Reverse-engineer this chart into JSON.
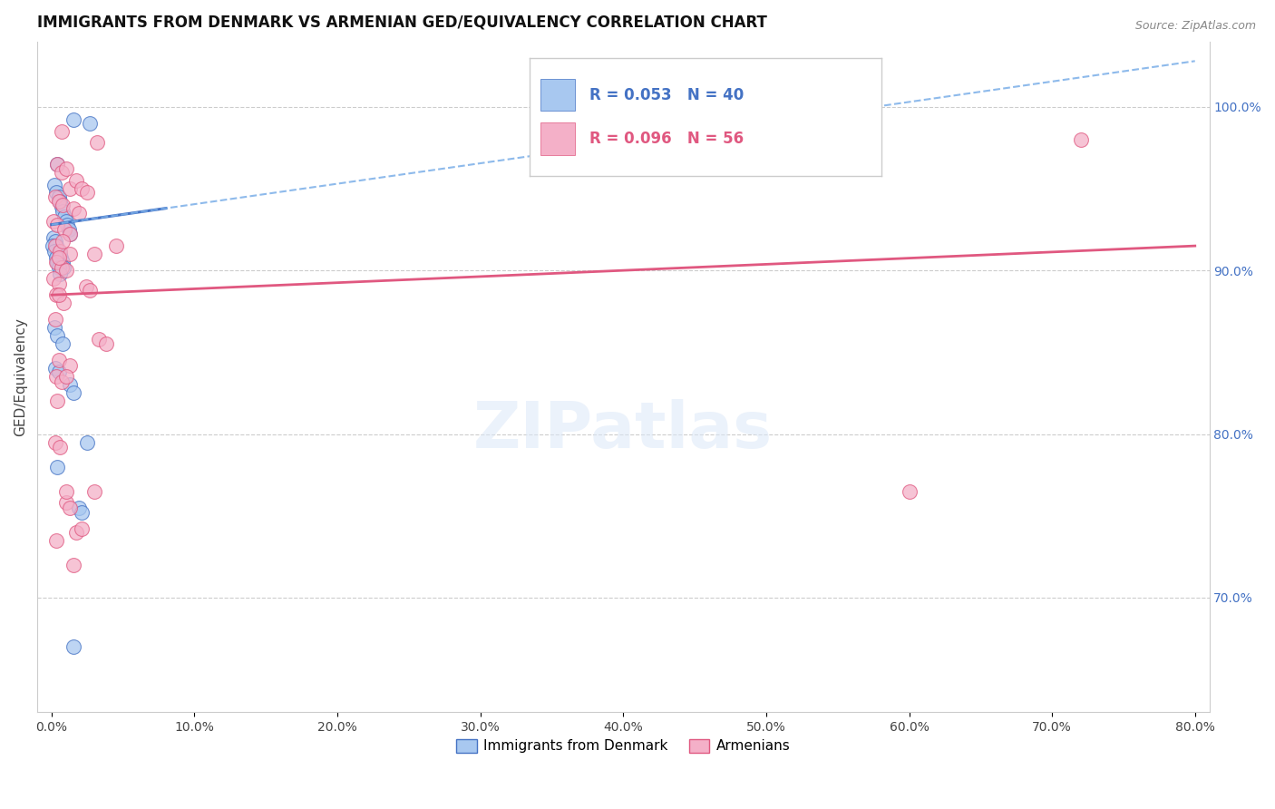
{
  "title": "IMMIGRANTS FROM DENMARK VS ARMENIAN GED/EQUIVALENCY CORRELATION CHART",
  "source": "Source: ZipAtlas.com",
  "ylabel": "GED/Equivalency",
  "right_yticks": [
    70,
    80,
    90,
    100
  ],
  "legend_label1": "Immigrants from Denmark",
  "legend_label2": "Armenians",
  "blue_scatter_x": [
    0.4,
    1.5,
    2.7,
    0.2,
    0.3,
    0.5,
    0.6,
    0.7,
    0.8,
    0.9,
    1.0,
    1.1,
    1.2,
    1.3,
    0.15,
    0.25,
    0.35,
    0.45,
    0.55,
    0.65,
    0.75,
    0.85,
    0.1,
    0.2,
    0.3,
    0.4,
    0.5,
    0.6,
    1.3,
    1.5,
    1.9,
    2.1,
    1.5,
    0.2,
    0.4,
    0.8,
    0.25,
    0.5,
    2.5,
    0.4
  ],
  "blue_scatter_y": [
    96.5,
    99.2,
    99.0,
    95.2,
    94.8,
    94.5,
    94.2,
    93.9,
    93.6,
    93.3,
    93.0,
    92.8,
    92.5,
    92.2,
    92.0,
    91.8,
    91.5,
    91.2,
    91.0,
    90.8,
    90.5,
    90.2,
    91.5,
    91.2,
    90.8,
    90.5,
    90.2,
    89.8,
    83.0,
    82.5,
    75.5,
    75.2,
    67.0,
    86.5,
    86.0,
    85.5,
    84.0,
    83.8,
    79.5,
    78.0
  ],
  "pink_scatter_x": [
    0.7,
    3.2,
    0.4,
    0.7,
    1.0,
    1.3,
    1.7,
    2.1,
    2.5,
    0.25,
    0.5,
    0.8,
    1.5,
    1.9,
    0.15,
    0.4,
    0.9,
    1.3,
    0.25,
    0.6,
    3.0,
    0.35,
    0.7,
    1.0,
    0.15,
    0.5,
    2.4,
    2.7,
    0.35,
    0.85,
    3.3,
    3.8,
    0.5,
    1.3,
    0.35,
    0.7,
    0.4,
    0.25,
    0.6,
    3.0,
    1.0,
    1.3,
    1.7,
    2.1,
    0.35,
    1.5,
    0.8,
    4.5,
    1.3,
    0.5,
    0.25,
    1.0,
    0.5,
    1.0,
    60.0,
    72.0
  ],
  "pink_scatter_y": [
    98.5,
    97.8,
    96.5,
    96.0,
    96.2,
    95.0,
    95.5,
    95.0,
    94.8,
    94.5,
    94.2,
    94.0,
    93.8,
    93.5,
    93.0,
    92.8,
    92.5,
    92.2,
    91.5,
    91.2,
    91.0,
    90.5,
    90.2,
    90.0,
    89.5,
    89.2,
    89.0,
    88.8,
    88.5,
    88.0,
    85.8,
    85.5,
    84.5,
    84.2,
    83.5,
    83.2,
    82.0,
    79.5,
    79.2,
    76.5,
    75.8,
    75.5,
    74.0,
    74.2,
    73.5,
    72.0,
    91.8,
    91.5,
    91.0,
    90.8,
    87.0,
    76.5,
    88.5,
    83.5,
    76.5,
    98.0
  ],
  "blue_color": "#a8c8f0",
  "pink_color": "#f4b0c8",
  "blue_line_color": "#4472c4",
  "pink_line_color": "#e05880",
  "dashed_line_color": "#7aaee8",
  "bg_color": "#ffffff",
  "xlim": [
    0,
    80
  ],
  "ylim": [
    63,
    104
  ],
  "xticklabels": [
    "0.0%",
    "10.0%",
    "20.0%",
    "30.0%",
    "40.0%",
    "50.0%",
    "60.0%",
    "70.0%",
    "80.0%"
  ],
  "xtick_positions": [
    0,
    10,
    20,
    30,
    40,
    50,
    60,
    70,
    80
  ],
  "blue_line_x0": 0,
  "blue_line_y0": 92.8,
  "blue_line_x1": 8,
  "blue_line_y1": 93.8,
  "blue_dashed_x0": 0,
  "blue_dashed_y0": 92.8,
  "blue_dashed_x1": 80,
  "blue_dashed_y1": 102.8,
  "pink_line_x0": 0,
  "pink_line_y0": 88.5,
  "pink_line_x1": 80,
  "pink_line_y1": 91.5
}
